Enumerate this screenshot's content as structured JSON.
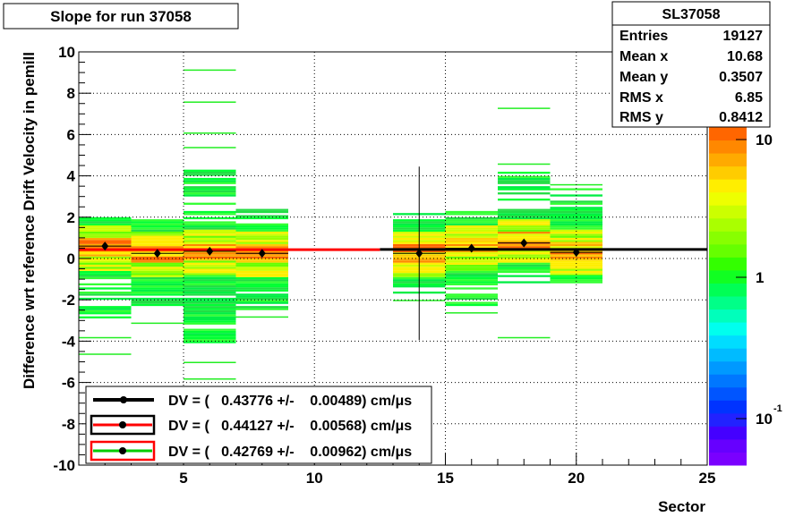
{
  "chart_data": {
    "type": "heatmap",
    "title": "Slope for run 37058",
    "xlabel": "Sector",
    "ylabel": "Difference wrt reference Drift Velocity in pemill",
    "xlim": [
      1,
      25
    ],
    "ylim": [
      -10,
      10
    ],
    "x_ticks": [
      "5",
      "10",
      "15",
      "20",
      "25"
    ],
    "y_ticks": [
      "-10",
      "-8",
      "-6",
      "-4",
      "-2",
      "0",
      "2",
      "4",
      "6",
      "8",
      "10"
    ],
    "grid": true,
    "z_scale": "log",
    "z_ticks": [
      "10",
      "1",
      "10"
    ],
    "z_tick_exponent": "-1",
    "stats": {
      "name": "SL37058",
      "rows": [
        {
          "label": "Entries",
          "value": "19127"
        },
        {
          "label": "Mean x",
          "value": "10.68"
        },
        {
          "label": "Mean y",
          "value": "0.3507"
        },
        {
          "label": "RMS x",
          "value": "6.85"
        },
        {
          "label": "RMS y",
          "value": "0.8412"
        }
      ]
    },
    "profile_points": [
      {
        "x": 2,
        "y": 0.6,
        "yerr": 0.15
      },
      {
        "x": 4,
        "y": 0.25,
        "yerr": 0.1
      },
      {
        "x": 6,
        "y": 0.35,
        "yerr": 0.1
      },
      {
        "x": 8,
        "y": 0.25,
        "yerr": 0.1
      },
      {
        "x": 14,
        "y": 0.25,
        "yerr": 4.2
      },
      {
        "x": 16,
        "y": 0.5,
        "yerr": 0.1
      },
      {
        "x": 18,
        "y": 0.75,
        "yerr": 0.1
      },
      {
        "x": 20,
        "y": 0.3,
        "yerr": 0.1
      }
    ],
    "fits": [
      {
        "legend": "DV = (   0.43776 +/-    0.00489) cm/μs",
        "value": 0.43776,
        "x_range": [
          12.5,
          25
        ],
        "color": "#000000"
      },
      {
        "legend": "DV = (   0.44127 +/-    0.00568) cm/μs",
        "value": 0.44127,
        "x_range": [
          1,
          3
        ],
        "color": "#ff0000"
      },
      {
        "legend": "DV = (   0.42769 +/-    0.00962) cm/μs",
        "value": 0.42769,
        "x_range": [
          1,
          12.5
        ],
        "color": "#ff0000"
      }
    ]
  }
}
